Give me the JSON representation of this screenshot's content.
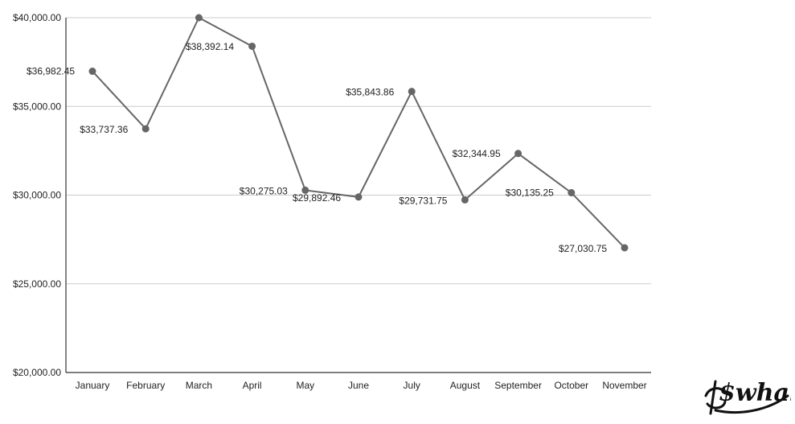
{
  "chart_data": {
    "type": "line",
    "categories": [
      "January",
      "February",
      "March",
      "April",
      "May",
      "June",
      "July",
      "August",
      "September",
      "October",
      "November"
    ],
    "series": [
      {
        "values": [
          36982.45,
          33737.36,
          40000.0,
          38392.14,
          30275.03,
          29892.46,
          35843.86,
          29731.75,
          32344.95,
          30135.25,
          27030.75
        ]
      }
    ],
    "data_labels": [
      "$36,982.45",
      "$33,737.36",
      "",
      "$38,392.14",
      "$30,275.03",
      "$29,892.46",
      "$35,843.86",
      "$29,731.75",
      "$32,344.95",
      "$30,135.25",
      "$27,030.75"
    ],
    "yticks": [
      20000,
      25000,
      30000,
      35000,
      40000
    ],
    "ytick_labels": [
      "$20,000.00",
      "$25,000.00",
      "$30,000.00",
      "$35,000.00",
      "$40,000.00"
    ],
    "ylim": [
      20000,
      40000
    ],
    "grid": true,
    "line_color": "#666666"
  },
  "watermark": {
    "text": "$whale",
    "icon": "whale-logo"
  }
}
